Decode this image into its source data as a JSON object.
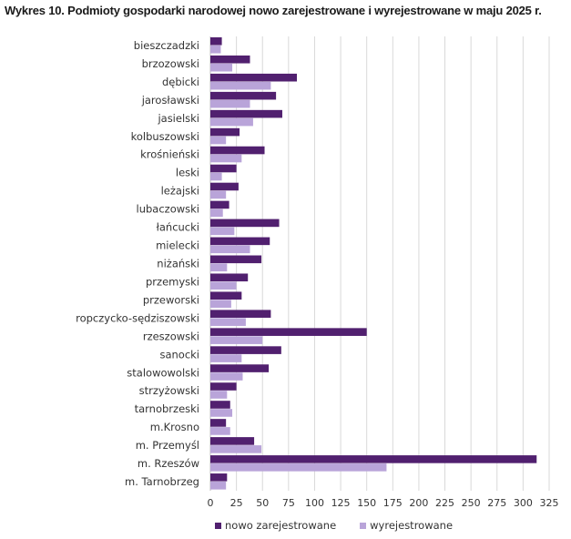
{
  "chart_data": {
    "type": "bar",
    "orientation": "horizontal",
    "title": "Wykres 10. Podmioty gospodarki narodowej nowo zarejestrowane i wyrejestrowane w maju 2025 r.",
    "xlabel": "",
    "ylabel": "",
    "xlim": [
      0,
      325
    ],
    "xticks": [
      0,
      25,
      50,
      75,
      100,
      125,
      150,
      175,
      200,
      225,
      250,
      275,
      300,
      325
    ],
    "grid": true,
    "legend_position": "bottom",
    "categories": [
      "bieszczadzki",
      "brzozowski",
      "dębicki",
      "jarosławski",
      "jasielski",
      "kolbuszowski",
      "krośnieński",
      "leski",
      "leżajski",
      "lubaczowski",
      "łańcucki",
      "mielecki",
      "niżański",
      "przemyski",
      "przeworski",
      "ropczycko-sędziszowski",
      "rzeszowski",
      "sanocki",
      "stalowowolski",
      "strzyżowski",
      "tarnobrzeski",
      "m.Krosno",
      "m. Przemyśl",
      "m. Rzeszów",
      "m. Tarnobrzeg"
    ],
    "series": [
      {
        "name": "nowo zarejestrowane",
        "color": "#51206f",
        "values": [
          11,
          38,
          83,
          63,
          69,
          28,
          52,
          25,
          27,
          18,
          66,
          57,
          49,
          36,
          30,
          58,
          150,
          68,
          56,
          25,
          19,
          15,
          42,
          313,
          16
        ]
      },
      {
        "name": "wyrejestrowane",
        "color": "#b9a4d9",
        "values": [
          10,
          21,
          58,
          38,
          41,
          15,
          30,
          11,
          15,
          12,
          23,
          38,
          16,
          25,
          20,
          34,
          50,
          30,
          31,
          16,
          21,
          19,
          49,
          169,
          15
        ]
      }
    ]
  }
}
